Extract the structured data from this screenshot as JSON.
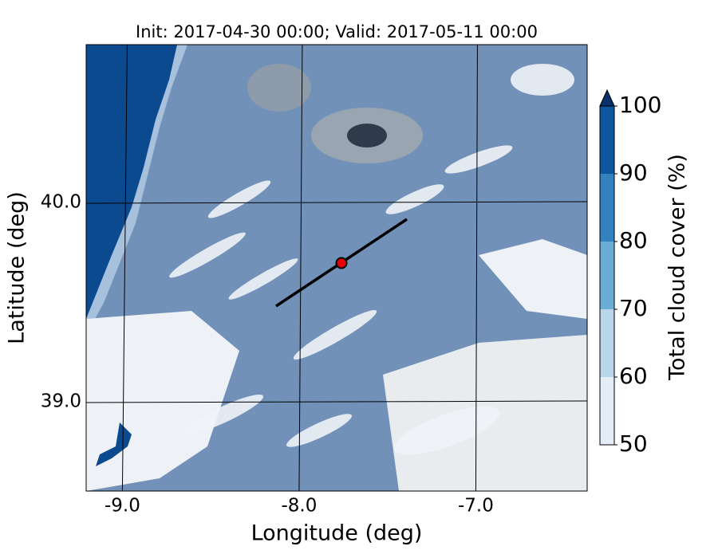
{
  "chart_data": {
    "type": "map",
    "title": "Init: 2017-04-30 00:00; Valid: 2017-05-11 00:00",
    "x_label": "Longitude (deg)",
    "y_label": "Latitude (deg)",
    "xlim": [
      -9.205,
      -6.37
    ],
    "ylim": [
      38.552,
      40.792
    ],
    "xticks": [
      {
        "value": -9,
        "label": "-9.0"
      },
      {
        "value": -8,
        "label": "-8.0"
      },
      {
        "value": -7,
        "label": "-7.0"
      }
    ],
    "yticks": [
      {
        "value": 39,
        "label": "39.0"
      },
      {
        "value": 40,
        "label": "40.0"
      }
    ],
    "grid": true,
    "colorbar": {
      "label": "Total cloud cover (%)",
      "ticks": [
        50,
        60,
        70,
        80,
        90,
        100
      ],
      "colors": [
        "#e3eef8",
        "#b9d5ea",
        "#6aaed6",
        "#3282bf",
        "#0c56a0"
      ],
      "extend_color": "#08306b"
    }
  }
}
